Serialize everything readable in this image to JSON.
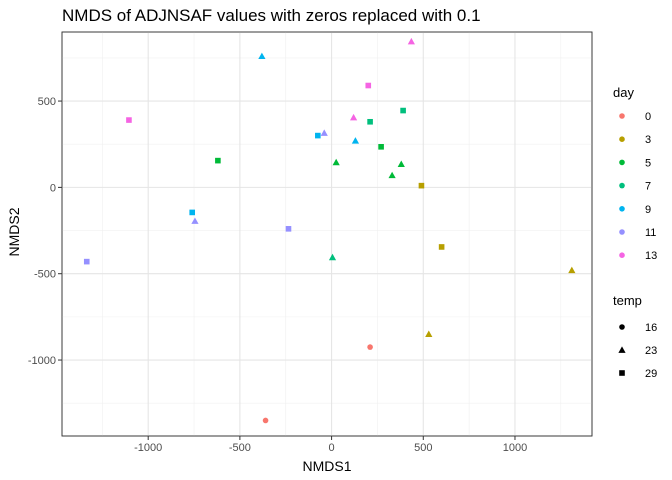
{
  "chart_data": {
    "type": "scatter",
    "title": "NMDS of ADJNSAF values with zeros replaced with 0.1",
    "xlabel": "NMDS1",
    "ylabel": "NMDS2",
    "xlim": [
      -1470,
      1420
    ],
    "ylim": [
      -1440,
      900
    ],
    "xticks": [
      -1000,
      -500,
      0,
      500,
      1000
    ],
    "xtick_labels": [
      "-1000",
      "-500",
      "0",
      "500",
      "1000"
    ],
    "yticks": [
      -1000,
      -500,
      0,
      500
    ],
    "ytick_labels": [
      "-1000",
      "-500",
      "0",
      "500"
    ],
    "grid": true,
    "legend_position": "right",
    "color_legend": {
      "title": "day",
      "entries": [
        {
          "label": "0",
          "color": "#F8766D"
        },
        {
          "label": "3",
          "color": "#B79F00"
        },
        {
          "label": "5",
          "color": "#00BA38"
        },
        {
          "label": "7",
          "color": "#00BF7D"
        },
        {
          "label": "9",
          "color": "#00B4EF"
        },
        {
          "label": "11",
          "color": "#9590FF"
        },
        {
          "label": "13",
          "color": "#F564E3"
        }
      ]
    },
    "shape_legend": {
      "title": "temp",
      "entries": [
        {
          "label": "16",
          "shape": "circle"
        },
        {
          "label": "23",
          "shape": "triangle"
        },
        {
          "label": "29",
          "shape": "square"
        }
      ]
    },
    "points": [
      {
        "x": 210,
        "y": -925,
        "day": "0",
        "temp": "16"
      },
      {
        "x": -360,
        "y": -1350,
        "day": "0",
        "temp": "16"
      },
      {
        "x": 1310,
        "y": -480,
        "day": "3",
        "temp": "23"
      },
      {
        "x": 530,
        "y": -850,
        "day": "3",
        "temp": "23"
      },
      {
        "x": 490,
        "y": 10,
        "day": "3",
        "temp": "29"
      },
      {
        "x": 600,
        "y": -345,
        "day": "3",
        "temp": "29"
      },
      {
        "x": -620,
        "y": 155,
        "day": "5",
        "temp": "29"
      },
      {
        "x": 270,
        "y": 235,
        "day": "5",
        "temp": "29"
      },
      {
        "x": 25,
        "y": 145,
        "day": "5",
        "temp": "23"
      },
      {
        "x": 330,
        "y": 70,
        "day": "5",
        "temp": "23"
      },
      {
        "x": 380,
        "y": 135,
        "day": "5",
        "temp": "23"
      },
      {
        "x": 210,
        "y": 380,
        "day": "7",
        "temp": "29"
      },
      {
        "x": 390,
        "y": 445,
        "day": "7",
        "temp": "29"
      },
      {
        "x": 5,
        "y": -405,
        "day": "7",
        "temp": "23"
      },
      {
        "x": -380,
        "y": 760,
        "day": "9",
        "temp": "23"
      },
      {
        "x": 130,
        "y": 270,
        "day": "9",
        "temp": "23"
      },
      {
        "x": -75,
        "y": 300,
        "day": "9",
        "temp": "29"
      },
      {
        "x": -760,
        "y": -145,
        "day": "9",
        "temp": "29"
      },
      {
        "x": -40,
        "y": 315,
        "day": "11",
        "temp": "23"
      },
      {
        "x": -745,
        "y": -195,
        "day": "11",
        "temp": "23"
      },
      {
        "x": -235,
        "y": -240,
        "day": "11",
        "temp": "29"
      },
      {
        "x": -1335,
        "y": -430,
        "day": "11",
        "temp": "29"
      },
      {
        "x": 435,
        "y": 845,
        "day": "13",
        "temp": "23"
      },
      {
        "x": 120,
        "y": 405,
        "day": "13",
        "temp": "23"
      },
      {
        "x": 200,
        "y": 590,
        "day": "13",
        "temp": "29"
      },
      {
        "x": -1105,
        "y": 390,
        "day": "13",
        "temp": "29"
      }
    ]
  }
}
